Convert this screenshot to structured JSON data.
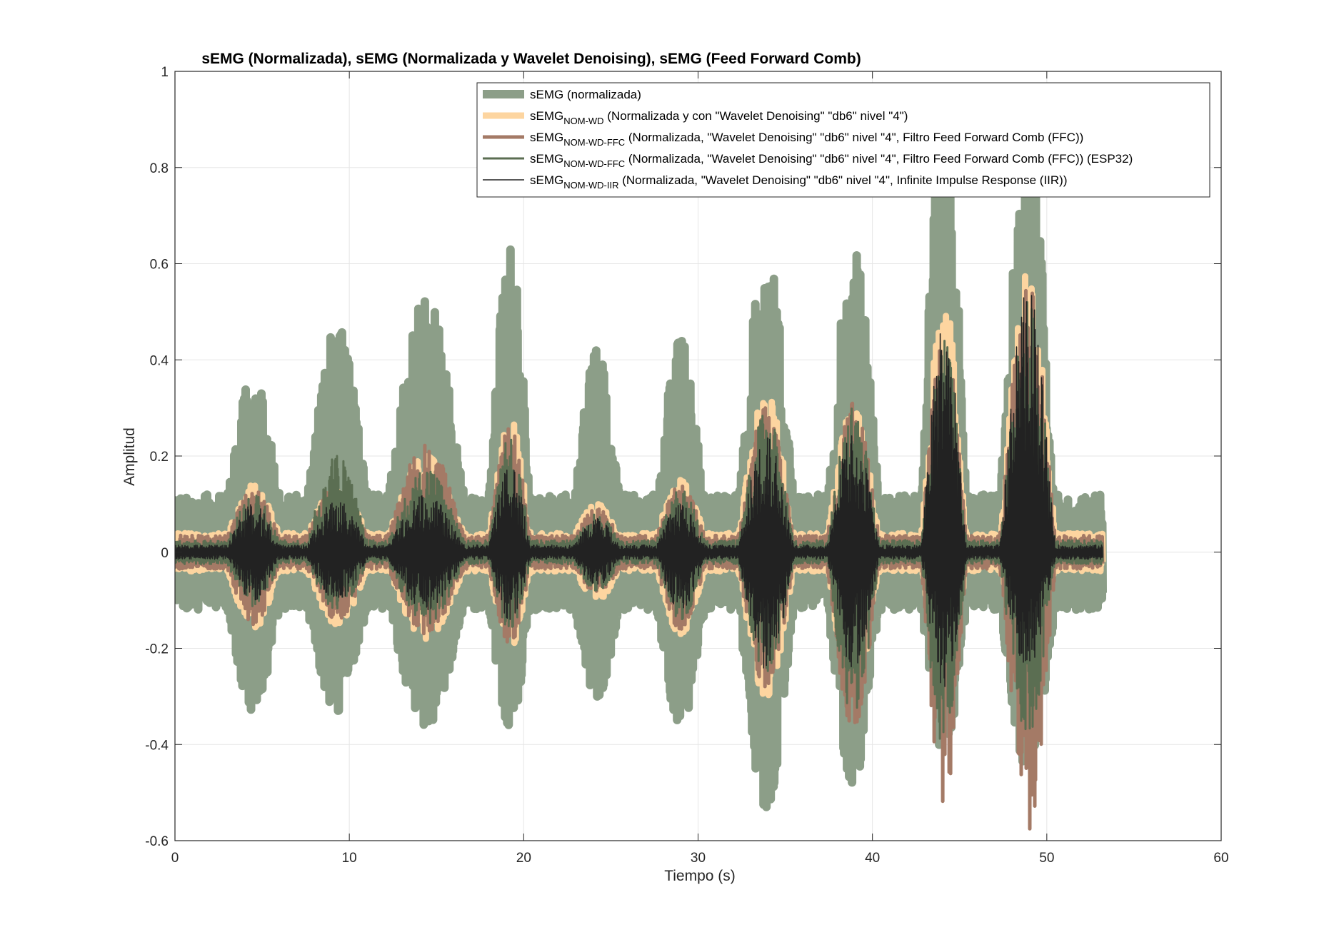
{
  "chart_data": {
    "type": "line",
    "title": "sEMG (Normalizada), sEMG (Normalizada y Wavelet Denoising), sEMG (Feed Forward Comb)",
    "xlabel": "Tiempo (s)",
    "ylabel": "Amplitud",
    "xlim": [
      0,
      60
    ],
    "ylim": [
      -0.6,
      1
    ],
    "xticks": [
      "0",
      "10",
      "20",
      "30",
      "40",
      "50",
      "60"
    ],
    "yticks": [
      "-0.6",
      "-0.4",
      "-0.2",
      "0",
      "0.2",
      "0.4",
      "0.6",
      "0.8",
      "1"
    ],
    "grid": true,
    "legend_position": "top-right",
    "duration_s": 53.2,
    "burst_centers_s": [
      4.5,
      9.3,
      14.4,
      19.2,
      24.2,
      29.0,
      33.9,
      38.9,
      44.1,
      48.9
    ],
    "series": [
      {
        "legend_main": "sEMG",
        "legend_sub": "",
        "legend_rest": " (normalizada)",
        "color": "#8c9e88",
        "baseline_amp": 0.12,
        "burst_peaks": [
          0.37,
          0.47,
          0.53,
          0.63,
          0.42,
          0.44,
          0.63,
          0.63,
          1.0,
          0.85
        ],
        "burst_troughs": [
          -0.33,
          -0.33,
          -0.36,
          -0.36,
          -0.3,
          -0.36,
          -0.53,
          -0.48,
          -0.42,
          -0.45
        ]
      },
      {
        "legend_main": "sEMG",
        "legend_sub": "NOM-WD",
        "legend_rest": " (Normalizada y con \"Wavelet Denoising\" \"db6\" nivel \"4\")",
        "color": "#fdd5a0",
        "baseline_amp": 0.04,
        "burst_peaks": [
          0.14,
          0.14,
          0.2,
          0.28,
          0.1,
          0.15,
          0.33,
          0.3,
          0.53,
          0.58
        ],
        "burst_troughs": [
          -0.16,
          -0.15,
          -0.18,
          -0.2,
          -0.1,
          -0.17,
          -0.3,
          -0.3,
          -0.25,
          -0.25
        ]
      },
      {
        "legend_main": "sEMG",
        "legend_sub": "NOM-WD-FFC",
        "legend_rest": " (Normalizada, \"Wavelet Denoising\" \"db6\" nivel \"4\", Filtro Feed Forward Comb (FFC))",
        "color": "#a47a66",
        "baseline_amp": 0.035,
        "burst_peaks": [
          0.13,
          0.14,
          0.23,
          0.26,
          0.09,
          0.14,
          0.3,
          0.31,
          0.47,
          0.56
        ],
        "burst_troughs": [
          -0.15,
          -0.14,
          -0.17,
          -0.19,
          -0.09,
          -0.16,
          -0.28,
          -0.37,
          -0.52,
          -0.58
        ]
      },
      {
        "legend_main": "sEMG",
        "legend_sub": "NOM-WD-FFC",
        "legend_rest": " (Normalizada, \"Wavelet Denoising\" \"db6\" nivel \"4\", Filtro Feed Forward Comb (FFC)) (ESP32)",
        "color": "#5b6e52",
        "baseline_amp": 0.025,
        "burst_peaks": [
          0.12,
          0.2,
          0.17,
          0.24,
          0.08,
          0.13,
          0.29,
          0.3,
          0.44,
          0.52
        ],
        "burst_troughs": [
          -0.12,
          -0.12,
          -0.15,
          -0.16,
          -0.08,
          -0.14,
          -0.25,
          -0.34,
          -0.42,
          -0.38
        ]
      },
      {
        "legend_main": "sEMG",
        "legend_sub": "NOM-WD-IIR",
        "legend_rest": " (Normalizada, \"Wavelet Denoising\" \"db6\" nivel \"4\", Infinite Impulse Response (IIR))",
        "color": "#222222",
        "baseline_amp": 0.015,
        "burst_peaks": [
          0.1,
          0.11,
          0.12,
          0.18,
          0.07,
          0.1,
          0.24,
          0.25,
          0.49,
          0.55
        ],
        "burst_troughs": [
          -0.1,
          -0.1,
          -0.12,
          -0.14,
          -0.07,
          -0.12,
          -0.26,
          -0.24,
          -0.28,
          -0.24
        ]
      }
    ]
  }
}
